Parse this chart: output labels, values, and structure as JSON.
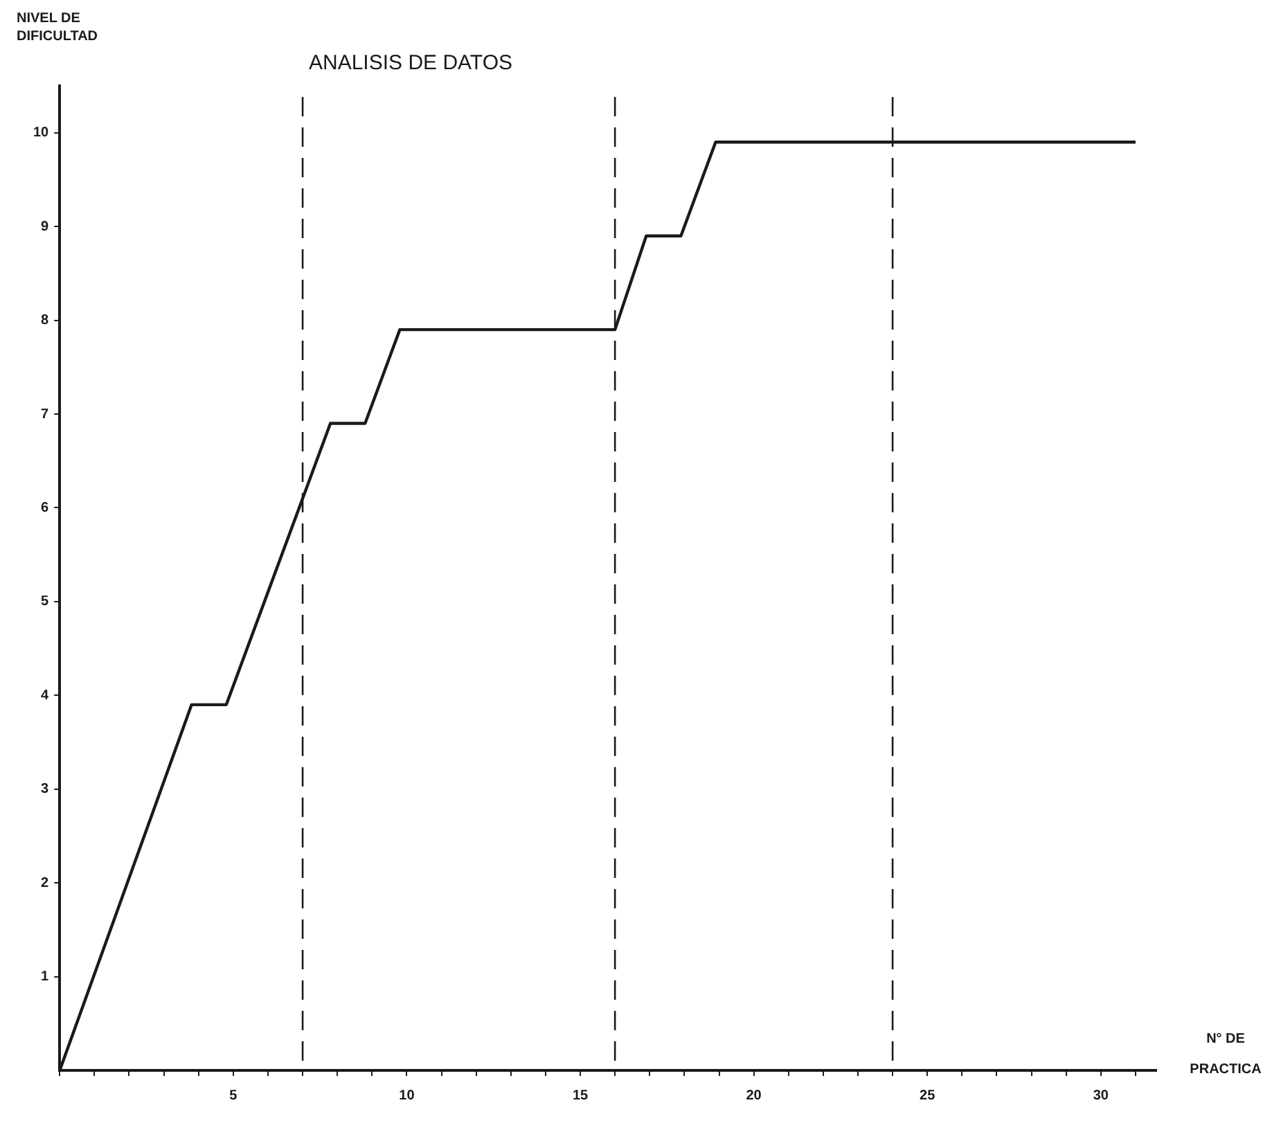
{
  "chart_data": {
    "type": "line",
    "title": "ANALISIS DE DATOS",
    "xlabel": "N° DE PRACTICA",
    "ylabel": "NIVEL DE DIFICULTAD",
    "x": [
      0,
      3.8,
      4.8,
      6.9,
      7.8,
      8.8,
      9.8,
      16,
      16.9,
      17.9,
      18.9,
      31
    ],
    "series": [
      {
        "color": "#1a1a1a",
        "values": [
          0,
          3.9,
          3.9,
          6,
          6.9,
          6.9,
          7.9,
          7.9,
          8.9,
          8.9,
          9.9,
          9.9
        ]
      }
    ],
    "xlim": [
      0,
      31.6
    ],
    "ylim": [
      0,
      10.5
    ],
    "xticks": [
      {
        "value": 0,
        "label": null
      },
      {
        "value": 1,
        "label": null
      },
      {
        "value": 2,
        "label": null
      },
      {
        "value": 3,
        "label": null
      },
      {
        "value": 4,
        "label": null
      },
      5,
      {
        "value": 6,
        "label": null
      },
      {
        "value": 7,
        "label": null
      },
      {
        "value": 8,
        "label": null
      },
      {
        "value": 9,
        "label": null
      },
      10,
      {
        "value": 11,
        "label": null
      },
      {
        "value": 12,
        "label": null
      },
      {
        "value": 13,
        "label": null
      },
      {
        "value": 14,
        "label": null
      },
      15,
      {
        "value": 16,
        "label": null
      },
      {
        "value": 17,
        "label": null
      },
      {
        "value": 18,
        "label": null
      },
      {
        "value": 19,
        "label": null
      },
      20,
      {
        "value": 21,
        "label": null
      },
      {
        "value": 22,
        "label": null
      },
      {
        "value": 23,
        "label": null
      },
      {
        "value": 24,
        "label": null
      },
      25,
      {
        "value": 26,
        "label": null
      },
      {
        "value": 27,
        "label": null
      },
      {
        "value": 28,
        "label": null
      },
      {
        "value": 29,
        "label": null
      },
      30,
      {
        "value": 31,
        "label": null
      }
    ],
    "yticks": [
      1,
      2,
      3,
      4,
      5,
      6,
      7,
      8,
      9,
      10
    ],
    "ref_lines": [
      {
        "axis": "x",
        "value": 7,
        "color": "#1a1a1a",
        "line_style": "dashed"
      },
      {
        "axis": "x",
        "value": 16,
        "color": "#1a1a1a",
        "line_style": "dashed"
      },
      {
        "axis": "x",
        "value": 24,
        "color": "#1a1a1a",
        "line_style": "dashed"
      }
    ],
    "grid": false,
    "legend": false,
    "marker": "none",
    "line_style": "solid"
  }
}
